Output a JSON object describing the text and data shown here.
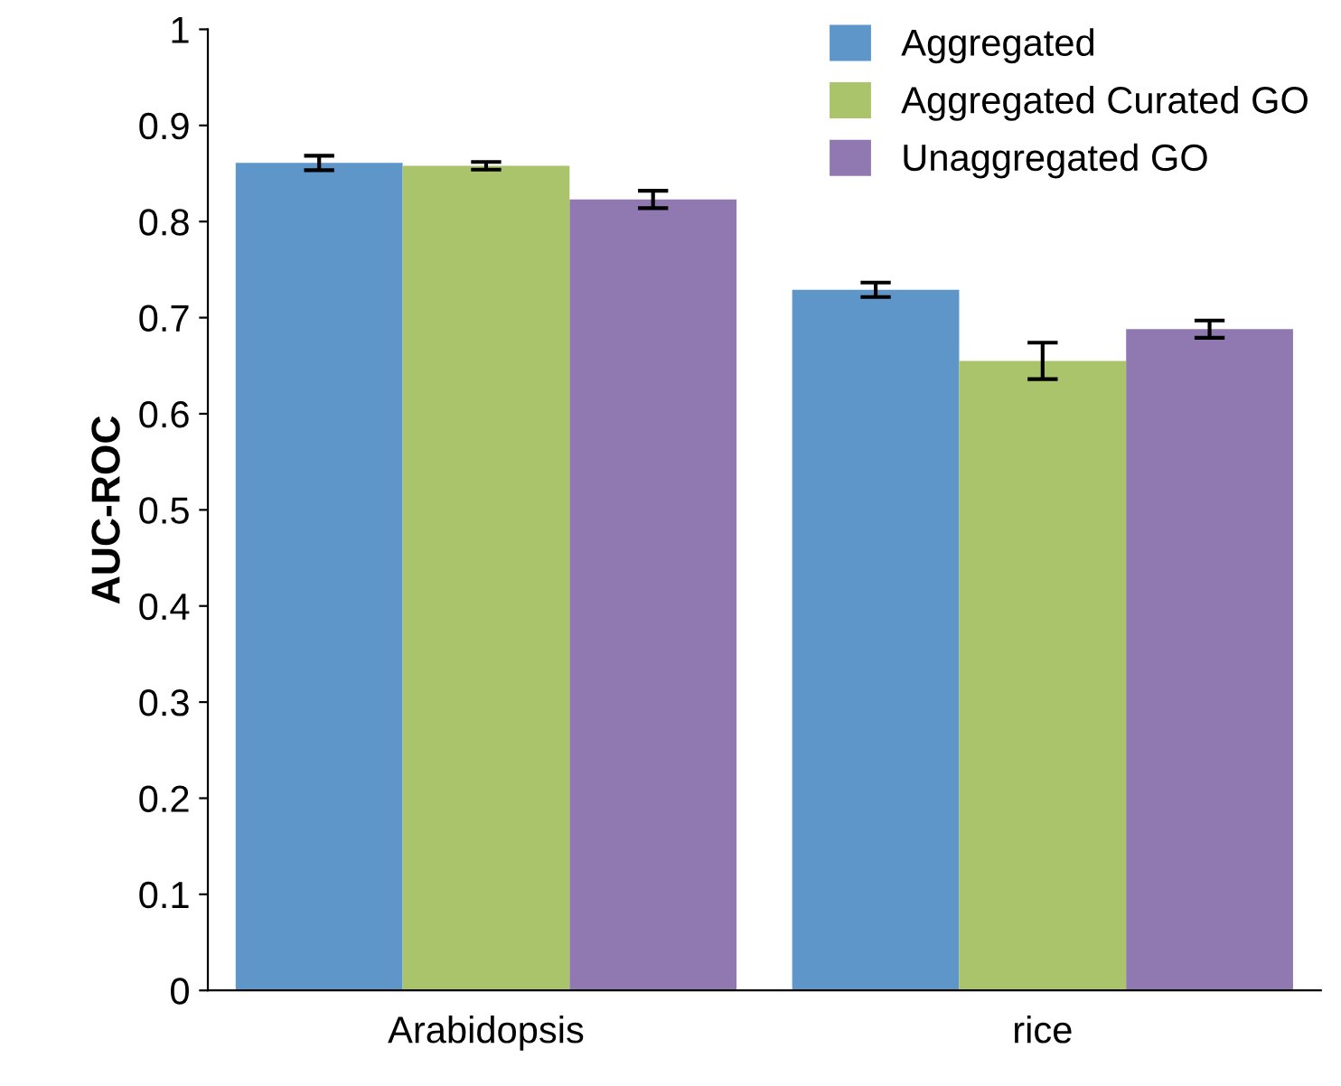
{
  "chart_data": {
    "type": "bar",
    "ylabel": "AUC-ROC",
    "categories": [
      "Arabidopsis",
      "rice"
    ],
    "series": [
      {
        "name": "Aggregated",
        "color": "#5e96c9",
        "values": [
          0.861,
          0.729
        ],
        "errors": [
          0.0075,
          0.0075
        ]
      },
      {
        "name": "Aggregated Curated GO",
        "color": "#a9c46b",
        "values": [
          0.858,
          0.655
        ],
        "errors": [
          0.004,
          0.019
        ]
      },
      {
        "name": "Unaggregated GO",
        "color": "#9079b0",
        "values": [
          0.823,
          0.688
        ],
        "errors": [
          0.009,
          0.009
        ]
      }
    ],
    "ylim": [
      0,
      1
    ],
    "yticks": [
      0,
      0.1,
      0.2,
      0.3,
      0.4,
      0.5,
      0.6,
      0.7,
      0.8,
      0.9,
      1
    ],
    "grid": false,
    "legend": "top right"
  }
}
